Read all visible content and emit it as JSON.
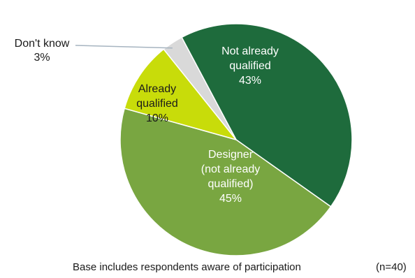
{
  "chart_data": {
    "type": "pie",
    "slices": [
      {
        "label_lines": [
          "Not already",
          "qualified"
        ],
        "value_label": "43%",
        "value": 43,
        "color": "#1e6b3c",
        "label_color": "#ffffff"
      },
      {
        "label_lines": [
          "Designer",
          "(not already",
          "qualified)"
        ],
        "value_label": "45%",
        "value": 45,
        "color": "#79a641",
        "label_color": "#ffffff"
      },
      {
        "label_lines": [
          "Already",
          "qualified"
        ],
        "value_label": "10%",
        "value": 10,
        "color": "#c8dc0a",
        "label_color": "#1a1a1a"
      },
      {
        "label_lines": [
          "Don't know"
        ],
        "value_label": "3%",
        "value": 3,
        "color": "#d9d9d9",
        "label_color": "#1a1a1a"
      }
    ]
  },
  "footer": {
    "base": "Base includes respondents aware of participation",
    "n": "(n=40)"
  }
}
